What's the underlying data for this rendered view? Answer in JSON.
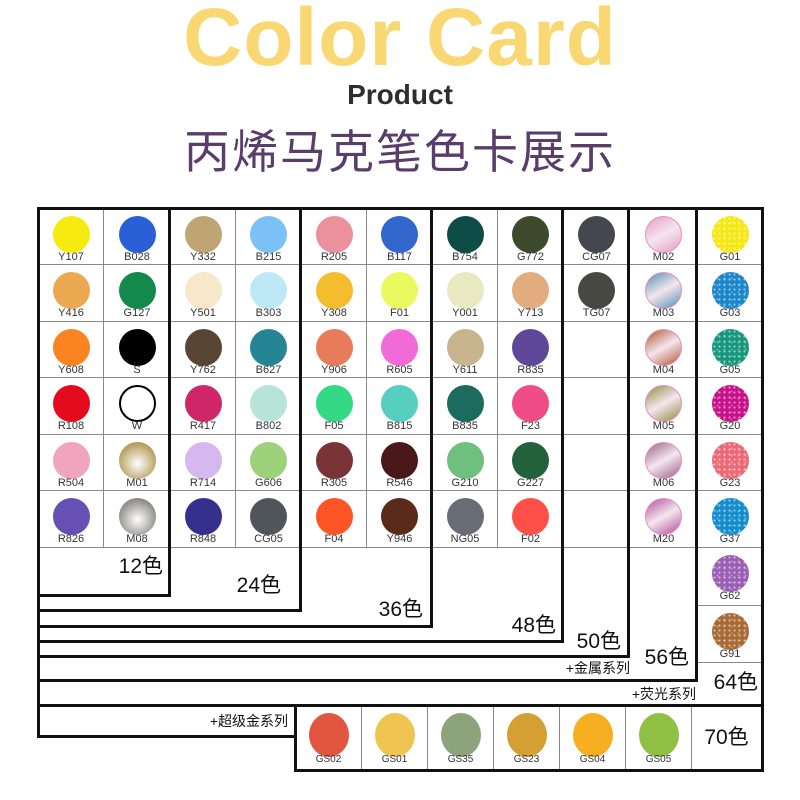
{
  "header": {
    "title_en": "Color Card",
    "subtitle": "Product",
    "title_cn": "丙烯马克笔色卡展示"
  },
  "colors": {
    "title_yellow": "#f9d874",
    "title_purple": "#5a3d6a",
    "border": "#111111",
    "grid": "#8a8a8a"
  },
  "columns": [
    [
      {
        "code": "Y107",
        "color": "#f7ea0f"
      },
      {
        "code": "Y416",
        "color": "#eda952"
      },
      {
        "code": "Y608",
        "color": "#fb8320"
      },
      {
        "code": "R108",
        "color": "#e30b1c"
      },
      {
        "code": "R504",
        "color": "#f0a4bd"
      },
      {
        "code": "R826",
        "color": "#6650b3"
      }
    ],
    [
      {
        "code": "B028",
        "color": "#2a5fd8"
      },
      {
        "code": "G127",
        "color": "#138a4b"
      },
      {
        "code": "S",
        "color": "#000000"
      },
      {
        "code": "W",
        "color": "#ffffff",
        "finish": "outline"
      },
      {
        "code": "M01",
        "color": "#a8883a",
        "finish": "metallic-radial"
      },
      {
        "code": "M08",
        "color": "#77756c",
        "finish": "metallic-radial"
      }
    ],
    [
      {
        "code": "Y332",
        "color": "#bfa574"
      },
      {
        "code": "Y501",
        "color": "#f6e8c8"
      },
      {
        "code": "Y762",
        "color": "#584635"
      },
      {
        "code": "R417",
        "color": "#cf2669"
      },
      {
        "code": "R714",
        "color": "#d4b8ee"
      },
      {
        "code": "R848",
        "color": "#35308e"
      }
    ],
    [
      {
        "code": "B215",
        "color": "#7cc1f6"
      },
      {
        "code": "B303",
        "color": "#bde8f6"
      },
      {
        "code": "B627",
        "color": "#258595"
      },
      {
        "code": "B802",
        "color": "#b8e3d9"
      },
      {
        "code": "G606",
        "color": "#9dd17a"
      },
      {
        "code": "CG05",
        "color": "#4f555b"
      }
    ],
    [
      {
        "code": "R205",
        "color": "#ea919d"
      },
      {
        "code": "Y308",
        "color": "#f3bd2d"
      },
      {
        "code": "Y906",
        "color": "#e87b5a"
      },
      {
        "code": "F05",
        "color": "#33d985"
      },
      {
        "code": "R305",
        "color": "#7a3437"
      },
      {
        "code": "F04",
        "color": "#fe5526"
      }
    ],
    [
      {
        "code": "B117",
        "color": "#3167cd"
      },
      {
        "code": "F01",
        "color": "#e9f95f"
      },
      {
        "code": "R605",
        "color": "#f06bd8"
      },
      {
        "code": "B815",
        "color": "#56cfc0"
      },
      {
        "code": "R546",
        "color": "#4a1818"
      },
      {
        "code": "Y946",
        "color": "#5a2a1b"
      }
    ],
    [
      {
        "code": "B754",
        "color": "#0e4c47"
      },
      {
        "code": "Y001",
        "color": "#e8e9c1"
      },
      {
        "code": "Y611",
        "color": "#c8b58f"
      },
      {
        "code": "B835",
        "color": "#1b6b5f"
      },
      {
        "code": "G210",
        "color": "#6fc07f"
      },
      {
        "code": "NG05",
        "color": "#686c75"
      }
    ],
    [
      {
        "code": "G772",
        "color": "#3d4a2c"
      },
      {
        "code": "Y713",
        "color": "#e2ac7f"
      },
      {
        "code": "R835",
        "color": "#5e4897"
      },
      {
        "code": "F23",
        "color": "#f04c86"
      },
      {
        "code": "G227",
        "color": "#22613c"
      },
      {
        "code": "F02",
        "color": "#fe5046"
      }
    ],
    [
      {
        "code": "CG07",
        "color": "#444650"
      },
      {
        "code": "TG07",
        "color": "#474841"
      },
      {
        "code": "",
        "color": ""
      },
      {
        "code": "",
        "color": ""
      },
      {
        "code": "",
        "color": ""
      },
      {
        "code": "",
        "color": ""
      }
    ],
    [
      {
        "code": "M02",
        "color": "#e79cc6",
        "finish": "metallic"
      },
      {
        "code": "M03",
        "color": "#4f8fb0",
        "finish": "metallic"
      },
      {
        "code": "M04",
        "color": "#b0572a",
        "finish": "metallic"
      },
      {
        "code": "M05",
        "color": "#8f8c3a",
        "finish": "metallic"
      },
      {
        "code": "M06",
        "color": "#9a6088",
        "finish": "metallic"
      },
      {
        "code": "M20",
        "color": "#b04d9c",
        "finish": "metallic"
      }
    ],
    [
      {
        "code": "G01",
        "color": "#f5e812",
        "finish": "glitter"
      },
      {
        "code": "G03",
        "color": "#1b86c9",
        "finish": "glitter"
      },
      {
        "code": "G05",
        "color": "#16977c",
        "finish": "glitter"
      },
      {
        "code": "G20",
        "color": "#c8108a",
        "finish": "glitter"
      },
      {
        "code": "G23",
        "color": "#eb6876",
        "finish": "glitter"
      },
      {
        "code": "G37",
        "color": "#128ccd",
        "finish": "glitter"
      },
      {
        "code": "G62",
        "color": "#9a5fb4",
        "finish": "glitter"
      },
      {
        "code": "G91",
        "color": "#a86a35",
        "finish": "glitter"
      }
    ]
  ],
  "super_gold": [
    {
      "code": "GS02",
      "color": "#e2563f"
    },
    {
      "code": "GS01",
      "color": "#f0c450"
    },
    {
      "code": "GS35",
      "color": "#8ca37b"
    },
    {
      "code": "GS23",
      "color": "#d4a033"
    },
    {
      "code": "GS04",
      "color": "#f7ae21"
    },
    {
      "code": "GS05",
      "color": "#8fbf43"
    }
  ],
  "tiers": {
    "t12": "12色",
    "t24": "24色",
    "t36": "36色",
    "t48": "48色",
    "t50": "50色",
    "t56": "56色",
    "metallic_series": "+金属系列",
    "t64": "64色",
    "fluorescent_series": "+荧光系列",
    "super_gold_series": "+超级金系列",
    "t70": "70色"
  }
}
